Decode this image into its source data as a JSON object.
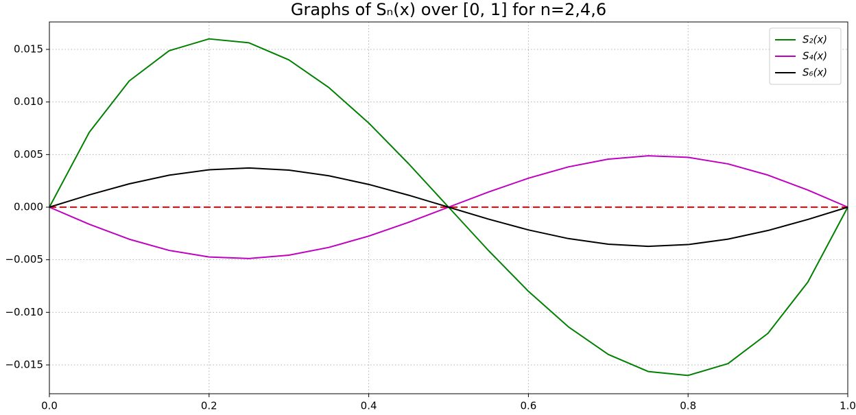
{
  "chart_data": {
    "type": "line",
    "title": "Graphs of Sₙ(x) over [0, 1] for n=2,4,6",
    "x": [
      0,
      0.05,
      0.1,
      0.15,
      0.2,
      0.25,
      0.3,
      0.35,
      0.4,
      0.45,
      0.5,
      0.55,
      0.6,
      0.65,
      0.7,
      0.75,
      0.8,
      0.85,
      0.9,
      0.95,
      1
    ],
    "series": [
      {
        "name": "S₂(x)",
        "color": "#008000",
        "values": [
          0,
          0.007125,
          0.012,
          0.014875,
          0.016,
          0.015625,
          0.014,
          0.011375,
          0.008,
          0.004125,
          0,
          -0.004125,
          -0.008,
          -0.011375,
          -0.014,
          -0.015625,
          -0.016,
          -0.014875,
          -0.012,
          -0.007125,
          0
        ]
      },
      {
        "name": "S₄(x)",
        "color": "#bf00bf",
        "values": [
          0,
          -0.001628,
          -0.003048,
          -0.004113,
          -0.004736,
          -0.004883,
          -0.004564,
          -0.003828,
          -0.002752,
          -0.001438,
          0,
          0.001438,
          0.002752,
          0.003828,
          0.004564,
          0.004883,
          0.004736,
          0.004113,
          0.003048,
          0.001628,
          0
        ]
      },
      {
        "name": "S₆(x)",
        "color": "#000000",
        "values": [
          0,
          0.00117,
          0.002219,
          0.003041,
          0.003558,
          0.003723,
          0.003525,
          0.002986,
          0.002163,
          0.001135,
          0,
          -0.001135,
          -0.002163,
          -0.002986,
          -0.003525,
          -0.003723,
          -0.003558,
          -0.003041,
          -0.002219,
          -0.00117,
          0
        ]
      }
    ],
    "hline": {
      "value": 0,
      "color": "#ff0000",
      "style": "dashed"
    },
    "xlim": [
      0,
      1
    ],
    "ylim": [
      -0.01774,
      0.01761
    ],
    "xticks": [
      {
        "value": 0,
        "label": "0.0"
      },
      0.2,
      0.4,
      0.6,
      0.8,
      {
        "value": 1,
        "label": "1.0"
      }
    ],
    "yticks": [
      {
        "value": -0.015,
        "label": "−0.015"
      },
      {
        "value": -0.01,
        "label": "−0.010"
      },
      {
        "value": -0.005,
        "label": "−0.005"
      },
      {
        "value": 0,
        "label": "0.000"
      },
      0.005,
      {
        "value": 0.01,
        "label": "0.010"
      },
      0.015
    ],
    "grid": true,
    "legend": "upper right"
  }
}
